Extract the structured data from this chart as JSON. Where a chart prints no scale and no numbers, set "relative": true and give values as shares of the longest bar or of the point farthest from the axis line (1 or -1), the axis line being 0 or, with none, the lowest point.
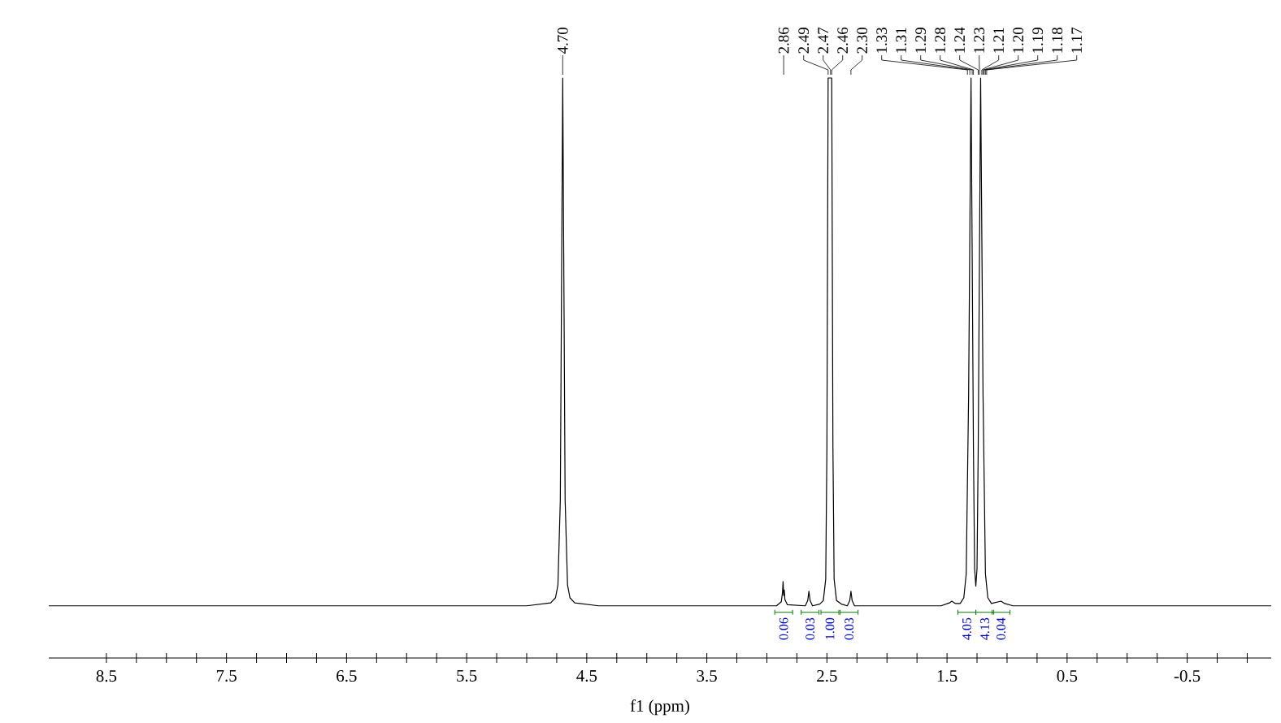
{
  "chart_data": {
    "type": "line",
    "relative": true,
    "xlabel": "f1 (ppm)",
    "color": "#000000",
    "x": [
      8.98,
      5.0,
      4.8,
      4.76,
      4.74,
      4.72,
      4.71,
      4.7,
      4.69,
      4.68,
      4.66,
      4.64,
      4.6,
      4.4,
      2.92,
      2.88,
      2.87,
      2.865,
      2.86,
      2.855,
      2.85,
      2.83,
      2.68,
      2.66,
      2.65,
      2.64,
      2.62,
      2.56,
      2.53,
      2.51,
      2.5,
      2.49,
      2.48,
      2.47,
      2.46,
      2.45,
      2.44,
      2.42,
      2.38,
      2.33,
      2.31,
      2.3,
      2.29,
      2.27,
      1.55,
      1.48,
      1.46,
      1.43,
      1.39,
      1.36,
      1.34,
      1.32,
      1.3,
      1.28,
      1.27,
      1.26,
      1.25,
      1.24,
      1.22,
      1.2,
      1.18,
      1.16,
      1.13,
      1.05,
      1.02,
      0.95,
      -1.2
    ],
    "values": [
      0.09,
      0.09,
      0.095,
      0.104,
      0.126,
      0.272,
      0.636,
      1,
      0.636,
      0.272,
      0.126,
      0.104,
      0.095,
      0.09,
      0.09,
      0.097,
      0.113,
      0.132,
      0.108,
      0.117,
      0.101,
      0.092,
      0.09,
      0.099,
      0.115,
      0.099,
      0.09,
      0.093,
      0.099,
      0.136,
      0.363,
      1,
      1,
      1,
      1,
      0.363,
      0.136,
      0.099,
      0.093,
      0.09,
      0.099,
      0.115,
      0.099,
      0.09,
      0.09,
      0.095,
      0.098,
      0.094,
      0.094,
      0.104,
      0.145,
      0.454,
      1,
      0.363,
      0.154,
      0.124,
      0.154,
      0.363,
      1,
      0.454,
      0.145,
      0.104,
      0.094,
      0.098,
      0.094,
      0.09,
      0.09
    ],
    "xlim": [
      8.98,
      -1.2
    ],
    "xticks": [
      8.5,
      {
        "value": 8,
        "label": null
      },
      7.5,
      {
        "value": 7,
        "label": null
      },
      6.5,
      {
        "value": 6,
        "label": null
      },
      5.5,
      {
        "value": 5,
        "label": null
      },
      4.5,
      {
        "value": 4,
        "label": null
      },
      3.5,
      {
        "value": 3,
        "label": null
      },
      2.5,
      {
        "value": 2,
        "label": null
      },
      1.5,
      {
        "value": 1,
        "label": null
      },
      0.5,
      {
        "value": 0,
        "label": null
      },
      -0.5,
      {
        "value": -1,
        "label": null
      }
    ],
    "annotations": [
      {
        "text": "4.70",
        "x": 4.7
      },
      {
        "text": "2.86",
        "x": 2.86
      },
      {
        "text": "2.49",
        "x": 2.49
      },
      {
        "text": "2.47",
        "x": 2.47
      },
      {
        "text": "2.46",
        "x": 2.46
      },
      {
        "text": "2.30",
        "x": 2.3
      },
      {
        "text": "1.33",
        "x": 1.33
      },
      {
        "text": "1.31",
        "x": 1.31
      },
      {
        "text": "1.29",
        "x": 1.29
      },
      {
        "text": "1.28",
        "x": 1.28
      },
      {
        "text": "1.24",
        "x": 1.24
      },
      {
        "text": "1.23",
        "x": 1.23
      },
      {
        "text": "1.21",
        "x": 1.21
      },
      {
        "text": "1.20",
        "x": 1.2
      },
      {
        "text": "1.19",
        "x": 1.19
      },
      {
        "text": "1.18",
        "x": 1.18
      },
      {
        "text": "1.17",
        "x": 1.17
      },
      {
        "text": "0.06",
        "x": 2.86,
        "y": 0.09
      },
      {
        "text": "0.03",
        "x": 2.64,
        "y": 0.09
      },
      {
        "text": "1.00",
        "x": 2.475,
        "y": 0.09
      },
      {
        "text": "0.03",
        "x": 2.315,
        "y": 0.09
      },
      {
        "text": "4.05",
        "x": 1.335,
        "y": 0.09
      },
      {
        "text": "4.13",
        "x": 1.185,
        "y": 0.09
      },
      {
        "text": "0.04",
        "x": 1.05,
        "y": 0.09
      }
    ]
  }
}
